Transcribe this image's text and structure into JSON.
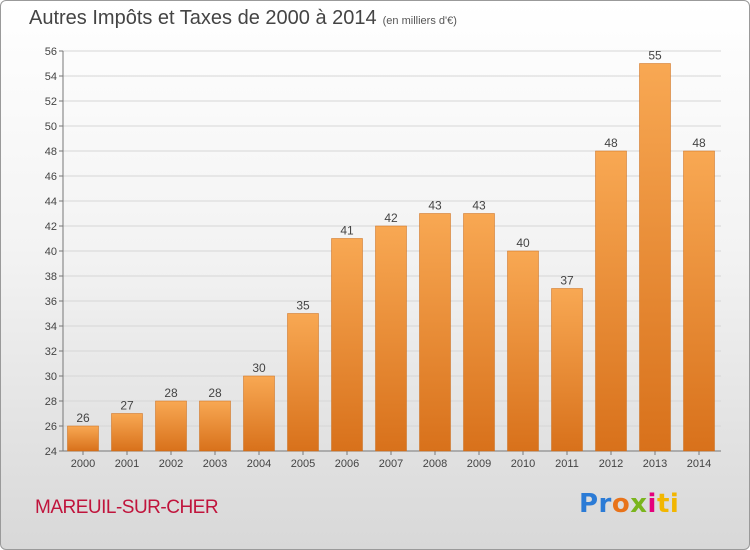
{
  "title": "Autres Impôts et Taxes de 2000 à 2014",
  "subtitle": "(en milliers d'€)",
  "city": "MAREUIL-SUR-CHER",
  "logo": {
    "parts": [
      "Pr",
      "o",
      "x",
      "i",
      "ti"
    ],
    "colors": [
      "#2b7bd6",
      "#e8731a",
      "#7ab51d",
      "#e4007c",
      "#f2b600"
    ]
  },
  "colors": {
    "bar_light": "#f7a44f",
    "bar_dark": "#d9731c",
    "text": "#444444",
    "city": "#c0143c"
  },
  "chart_data": {
    "type": "bar",
    "title": "Autres Impôts et Taxes de 2000 à 2014",
    "subtitle": "(en milliers d'€)",
    "categories": [
      "2000",
      "2001",
      "2002",
      "2003",
      "2004",
      "2005",
      "2006",
      "2007",
      "2008",
      "2009",
      "2010",
      "2011",
      "2012",
      "2013",
      "2014"
    ],
    "values": [
      26,
      27,
      28,
      28,
      30,
      35,
      41,
      42,
      43,
      43,
      40,
      37,
      48,
      55,
      48
    ],
    "ylim": [
      24,
      56
    ],
    "yticks": [
      24,
      26,
      28,
      30,
      32,
      34,
      36,
      38,
      40,
      42,
      44,
      46,
      48,
      50,
      52,
      54,
      56
    ],
    "grid": true,
    "data_labels": true,
    "xlabel": "",
    "ylabel": ""
  }
}
